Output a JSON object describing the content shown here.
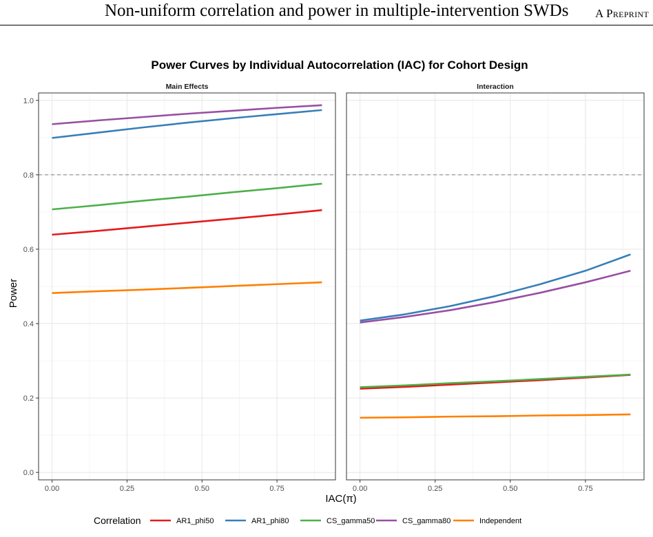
{
  "header": {
    "title": "Non-uniform correlation and power in multiple-intervention SWDs",
    "tag": "A Preprint"
  },
  "chart_data": {
    "type": "line",
    "title": "Power Curves by Individual Autocorrelation (IAC) for Cohort Design",
    "xlabel": "IAC(π)",
    "ylabel": "Power",
    "xlim": [
      0,
      0.9
    ],
    "ylim": [
      0,
      1.0
    ],
    "x_ticks": [
      0.0,
      0.25,
      0.5,
      0.75
    ],
    "x_tick_labels": [
      "0.00",
      "0.25",
      "0.50",
      "0.75"
    ],
    "y_ticks": [
      0.0,
      0.2,
      0.4,
      0.6,
      0.8,
      1.0
    ],
    "y_tick_labels": [
      "0.0",
      "0.2",
      "0.4",
      "0.6",
      "0.8",
      "1.0"
    ],
    "grid": true,
    "reference_line": {
      "y": 0.8,
      "style": "dashed"
    },
    "legend": {
      "title": "Correlation",
      "position": "bottom",
      "entries": [
        "AR1_phi50",
        "AR1_phi80",
        "CS_gamma50",
        "CS_gamma80",
        "Independent"
      ]
    },
    "colors": {
      "AR1_phi50": "#e41a1c",
      "AR1_phi80": "#377eb8",
      "CS_gamma50": "#4daf4a",
      "CS_gamma80": "#984ea3",
      "Independent": "#ff7f00"
    },
    "x": [
      0.0,
      0.15,
      0.3,
      0.45,
      0.6,
      0.75,
      0.9
    ],
    "panels": [
      {
        "title": "Main Effects",
        "series": [
          {
            "name": "AR1_phi50",
            "values": [
              0.639,
              0.649,
              0.66,
              0.671,
              0.682,
              0.693,
              0.705
            ]
          },
          {
            "name": "AR1_phi80",
            "values": [
              0.899,
              0.913,
              0.927,
              0.94,
              0.952,
              0.963,
              0.974
            ]
          },
          {
            "name": "CS_gamma50",
            "values": [
              0.707,
              0.718,
              0.73,
              0.741,
              0.753,
              0.764,
              0.776
            ]
          },
          {
            "name": "CS_gamma80",
            "values": [
              0.936,
              0.946,
              0.955,
              0.964,
              0.972,
              0.98,
              0.987
            ]
          },
          {
            "name": "Independent",
            "values": [
              0.482,
              0.487,
              0.491,
              0.496,
              0.501,
              0.506,
              0.511
            ]
          }
        ]
      },
      {
        "title": "Interaction",
        "series": [
          {
            "name": "AR1_phi50",
            "values": [
              0.225,
              0.23,
              0.236,
              0.242,
              0.248,
              0.255,
              0.262
            ]
          },
          {
            "name": "AR1_phi80",
            "values": [
              0.408,
              0.425,
              0.447,
              0.474,
              0.506,
              0.542,
              0.586
            ]
          },
          {
            "name": "CS_gamma50",
            "values": [
              0.229,
              0.234,
              0.24,
              0.245,
              0.251,
              0.257,
              0.263
            ]
          },
          {
            "name": "CS_gamma80",
            "values": [
              0.403,
              0.418,
              0.436,
              0.458,
              0.483,
              0.511,
              0.542
            ]
          },
          {
            "name": "Independent",
            "values": [
              0.147,
              0.148,
              0.15,
              0.151,
              0.153,
              0.154,
              0.156
            ]
          }
        ]
      }
    ]
  }
}
